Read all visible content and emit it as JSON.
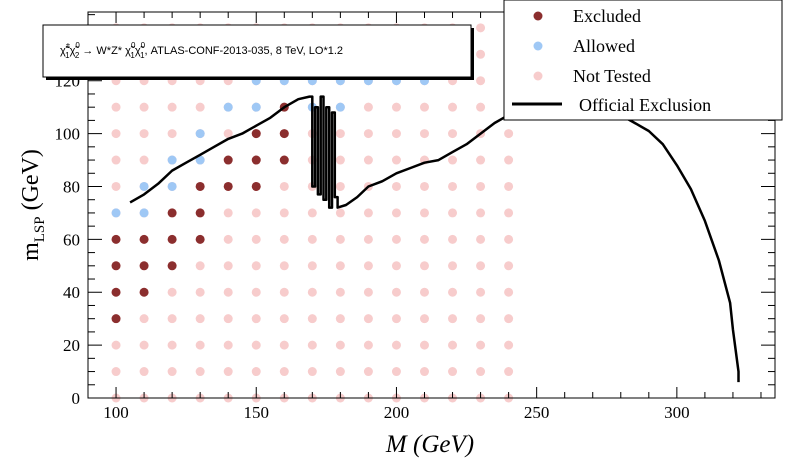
{
  "chart_data": {
    "type": "scatter",
    "xlabel": "M (GeV)",
    "ylabel_main": "m",
    "ylabel_sub": "LSP",
    "ylabel_unit": " (GeV)",
    "xlim": [
      90,
      335
    ],
    "ylim": [
      0,
      146
    ],
    "x_ticks": [
      100,
      150,
      200,
      250,
      300
    ],
    "y_ticks": [
      0,
      20,
      40,
      60,
      80,
      100,
      120
    ],
    "grid": false,
    "legend_position": "top-right",
    "annotation": {
      "chi": "χ̃",
      "sup1": "±",
      "sub1": "1",
      "sup2": "0",
      "sub2": "2",
      "mid": " → W*Z* ",
      "sup3": "0",
      "sub3": "1",
      "sup4": "0",
      "sub4": "1",
      "tail": ", ATLAS-CONF-2013-035, 8 TeV, LO*1.2"
    },
    "series": [
      {
        "name": "Excluded",
        "color": "#8b2e2e",
        "points": [
          [
            100,
            30
          ],
          [
            100,
            40
          ],
          [
            100,
            50
          ],
          [
            100,
            60
          ],
          [
            110,
            40
          ],
          [
            110,
            50
          ],
          [
            110,
            60
          ],
          [
            120,
            50
          ],
          [
            120,
            60
          ],
          [
            120,
            70
          ],
          [
            130,
            60
          ],
          [
            130,
            70
          ],
          [
            130,
            80
          ],
          [
            140,
            80
          ],
          [
            140,
            90
          ],
          [
            150,
            80
          ],
          [
            150,
            90
          ],
          [
            150,
            100
          ],
          [
            160,
            90
          ],
          [
            160,
            100
          ],
          [
            160,
            110
          ]
        ]
      },
      {
        "name": "Allowed",
        "color": "#9fc8f5",
        "points": [
          [
            100,
            70
          ],
          [
            110,
            70
          ],
          [
            110,
            80
          ],
          [
            120,
            80
          ],
          [
            120,
            90
          ],
          [
            130,
            90
          ],
          [
            130,
            100
          ],
          [
            140,
            110
          ],
          [
            150,
            110
          ],
          [
            150,
            120
          ],
          [
            160,
            120
          ],
          [
            170,
            120
          ],
          [
            170,
            110
          ],
          [
            180,
            110
          ],
          [
            180,
            120
          ],
          [
            190,
            120
          ],
          [
            200,
            120
          ],
          [
            210,
            120
          ]
        ]
      },
      {
        "name": "Not Tested",
        "color": "#f7cccc",
        "grid": {
          "x": [
            100,
            110,
            120,
            130,
            140,
            150,
            160,
            170,
            180,
            190,
            200,
            210,
            220,
            230,
            240
          ],
          "y": [
            0,
            10,
            20,
            30,
            40,
            50,
            60,
            70,
            80,
            90,
            100,
            110,
            120,
            130,
            140
          ]
        }
      }
    ],
    "exclusion_line": {
      "name": "Official Exclusion",
      "color": "#000000",
      "points": [
        [
          105,
          74
        ],
        [
          110,
          77
        ],
        [
          115,
          81
        ],
        [
          120,
          86
        ],
        [
          125,
          89
        ],
        [
          130,
          92
        ],
        [
          135,
          95
        ],
        [
          140,
          98
        ],
        [
          145,
          100
        ],
        [
          150,
          103
        ],
        [
          155,
          106
        ],
        [
          160,
          110
        ],
        [
          165,
          113
        ],
        [
          169,
          114
        ],
        [
          170,
          114
        ],
        [
          170,
          80
        ],
        [
          171,
          80
        ],
        [
          171,
          110
        ],
        [
          172,
          110
        ],
        [
          172,
          77
        ],
        [
          173,
          77
        ],
        [
          173,
          114
        ],
        [
          174,
          114
        ],
        [
          174,
          75
        ],
        [
          175,
          75
        ],
        [
          175,
          110
        ],
        [
          176,
          110
        ],
        [
          176,
          72
        ],
        [
          177,
          72
        ],
        [
          177,
          108
        ],
        [
          178,
          108
        ],
        [
          178,
          76
        ],
        [
          179,
          76
        ],
        [
          179,
          72
        ],
        [
          182,
          73
        ],
        [
          186,
          76
        ],
        [
          190,
          80
        ],
        [
          195,
          82
        ],
        [
          200,
          85
        ],
        [
          205,
          87
        ],
        [
          210,
          89
        ],
        [
          215,
          90
        ],
        [
          220,
          93
        ],
        [
          225,
          96
        ],
        [
          230,
          100
        ],
        [
          235,
          104
        ],
        [
          240,
          107
        ],
        [
          245,
          108
        ],
        [
          250,
          110
        ],
        [
          255,
          110
        ],
        [
          260,
          111
        ],
        [
          265,
          112
        ],
        [
          270,
          111
        ],
        [
          275,
          109
        ],
        [
          280,
          107
        ],
        [
          285,
          104
        ],
        [
          290,
          101
        ],
        [
          295,
          96
        ],
        [
          300,
          88
        ],
        [
          305,
          79
        ],
        [
          310,
          67
        ],
        [
          315,
          52
        ],
        [
          319,
          36
        ],
        [
          320,
          26
        ],
        [
          321,
          18
        ],
        [
          322,
          10
        ],
        [
          322,
          6
        ]
      ]
    }
  }
}
